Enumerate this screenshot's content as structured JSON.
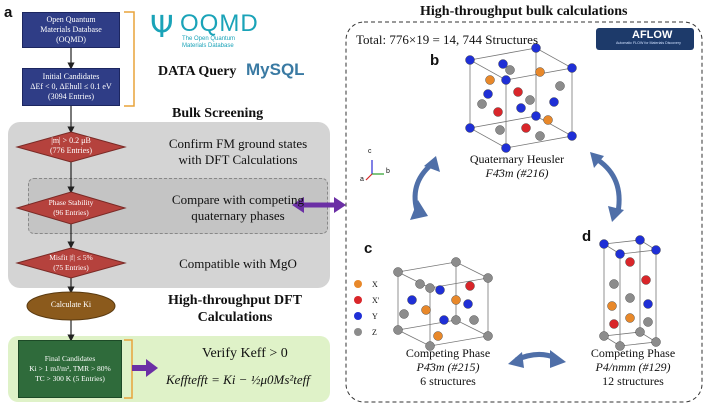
{
  "panel_a_letter": "a",
  "panel_b_letter": "b",
  "panel_c_letter": "c",
  "panel_d_letter": "d",
  "oqmd_box": [
    "Open Quantum",
    "Materials Database",
    "(OQMD)"
  ],
  "oqmd_logo": "OQMD",
  "oqmd_logo_sub": [
    "The Open Quantum",
    "Materials Database"
  ],
  "data_query_label": "DATA Query",
  "mysql_logo": "MySQL",
  "initial_box": [
    "Initial Candidates",
    "ΔEf < 0, ΔEhull ≤ 0.1 eV",
    "(3094 Entries)"
  ],
  "bulk_screening_label": "Bulk Screening",
  "diamond_1": [
    "|m| > 0.2 μB",
    "(776 Entries)"
  ],
  "text_1": [
    "Confirm FM ground states",
    "with DFT Calculations"
  ],
  "diamond_2": [
    "Phase Stability",
    "(96 Entries)"
  ],
  "text_2": [
    "Compare with competing",
    "quaternary phases"
  ],
  "diamond_3": [
    "Misfit |f| ≤ 5%",
    "(75 Entries)"
  ],
  "text_3": "Compatible with MgO",
  "oval_label": "Calculate Ki",
  "ht_dft_label": [
    "High-throughput DFT",
    "Calculations"
  ],
  "final_box": [
    "Final Candidates",
    "Ki > 1 mJ/m², TMR > 80%",
    "TC > 300 K (5 Entries)"
  ],
  "verify_text": "Verify Keff > 0",
  "equation_text": "Kefftefft = Ki − ½μ0Ms²teff",
  "right_title": "High-throughput bulk calculations",
  "total_text": "Total: 776×19 = 14, 744 Structures",
  "aflow_logo": "AFLOW",
  "aflow_logo_sub": "Automatic FLOW for Materials Discovery",
  "axes_labels": [
    "c",
    "a",
    "b"
  ],
  "phase_b": [
    "Quaternary Heusler",
    "F4̄3m (#216)"
  ],
  "phase_c": [
    "Competing Phase",
    "P4̄3m (#215)",
    "6 structures"
  ],
  "phase_d": [
    "Competing Phase",
    "P4/nmm (#129)",
    "12 structures"
  ],
  "legend": [
    {
      "label": "X",
      "color": "#e8882a"
    },
    {
      "label": "X'",
      "color": "#d9262a"
    },
    {
      "label": "Y",
      "color": "#1f2fd6"
    },
    {
      "label": "Z",
      "color": "#8c8c8c"
    }
  ],
  "colors": {
    "flow_blue": "#2f3d86",
    "diamond_red": "#b5423d",
    "oval_brown": "#8b5a1c",
    "final_green": "#2f6b3b",
    "arrow_purple": "#6b2fa5",
    "curve_blue": "#4f6fa8",
    "screen_gray": "#d4d4d4",
    "bracket_orange": "#e8a33a"
  }
}
